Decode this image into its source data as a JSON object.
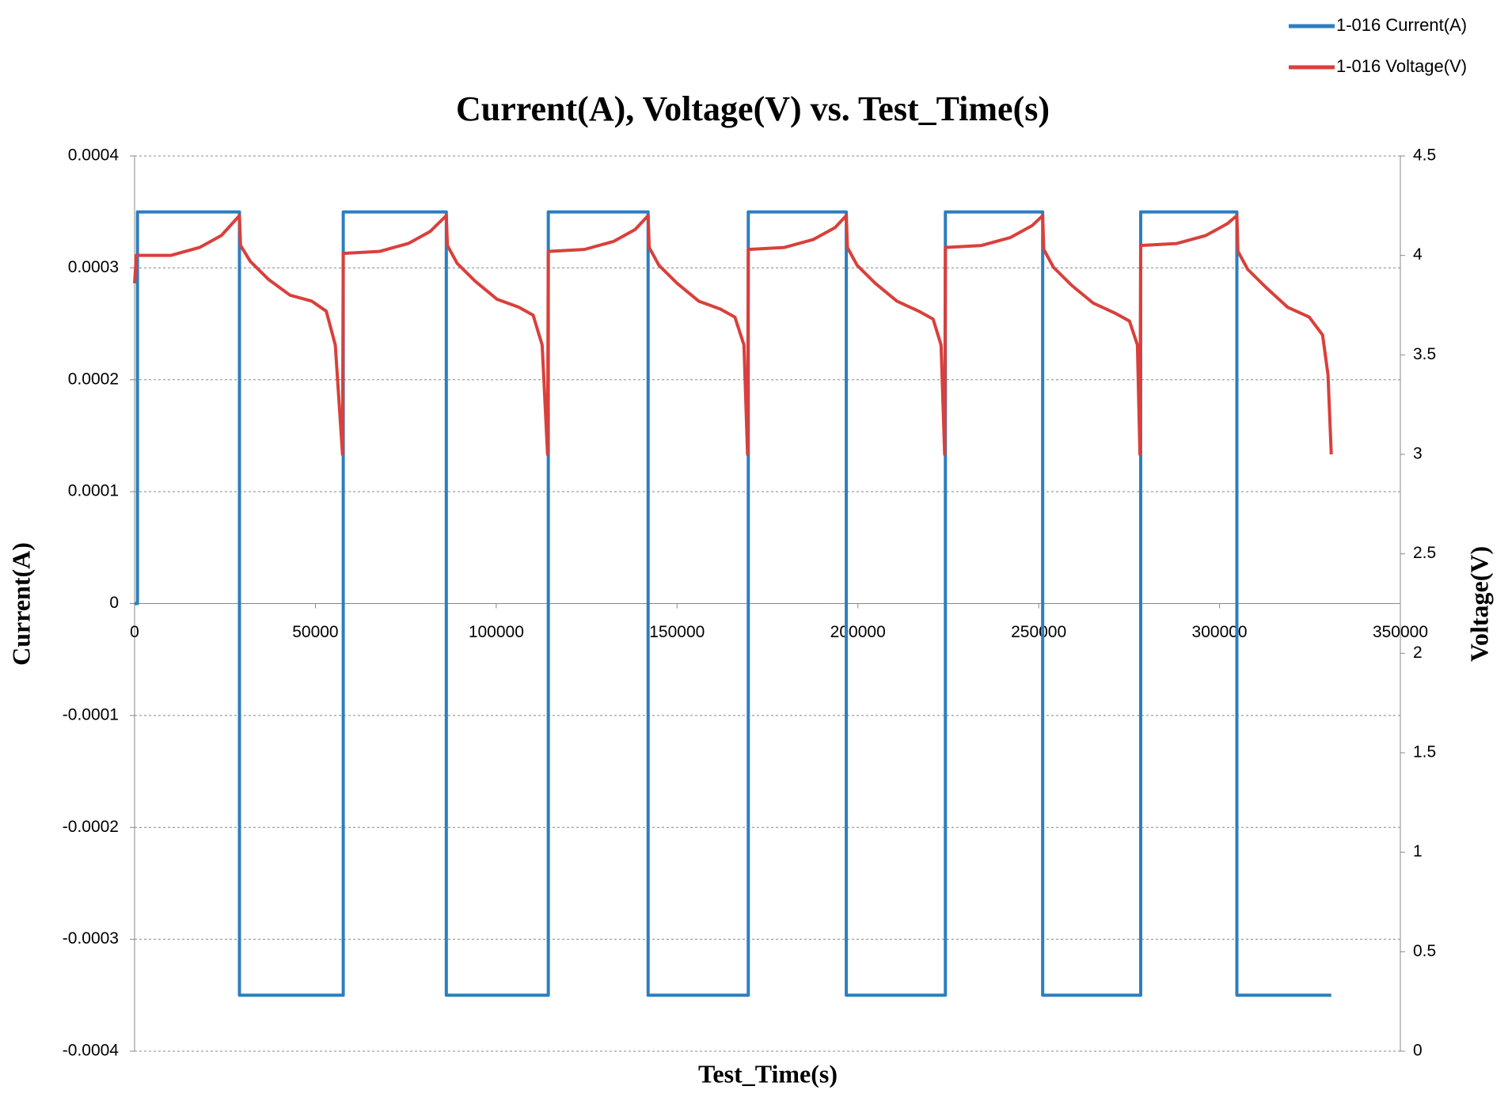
{
  "chart_data": {
    "type": "line",
    "title": "Current(A), Voltage(V) vs. Test_Time(s)",
    "x_label": "Test_Time(s)",
    "y_label": "Current(A)",
    "y2_label": "Voltage(V)",
    "xlim": [
      0,
      350000
    ],
    "xticks": [
      0,
      50000,
      100000,
      150000,
      200000,
      250000,
      300000,
      350000
    ],
    "ylim": [
      -0.0004,
      0.0004
    ],
    "yticks": [
      -0.0004,
      -0.0003,
      -0.0002,
      -0.0001,
      0,
      0.0001,
      0.0002,
      0.0003,
      0.0004
    ],
    "y2lim": [
      0,
      4.5
    ],
    "y2ticks": [
      0,
      0.5,
      1,
      1.5,
      2,
      2.5,
      3,
      3.5,
      4,
      4.5
    ],
    "grid": true,
    "legend": "top-right",
    "series": [
      {
        "name": "1-016 Current(A)",
        "color": "#2e7ebf",
        "axis": "y",
        "x": [
          0,
          800,
          800,
          29000,
          29000,
          57700,
          57700,
          86200,
          86200,
          114400,
          114400,
          142000,
          142000,
          169700,
          169700,
          196800,
          196800,
          224200,
          224200,
          251100,
          251100,
          278200,
          278200,
          304800,
          304800,
          330900
        ],
        "values": [
          0,
          0,
          0.00035,
          0.00035,
          -0.00035,
          -0.00035,
          0.00035,
          0.00035,
          -0.00035,
          -0.00035,
          0.00035,
          0.00035,
          -0.00035,
          -0.00035,
          0.00035,
          0.00035,
          -0.00035,
          -0.00035,
          0.00035,
          0.00035,
          -0.00035,
          -0.00035,
          0.00035,
          0.00035,
          -0.00035,
          -0.00035
        ]
      },
      {
        "name": "1-016 Voltage(V)",
        "color": "#d9403b",
        "axis": "y2",
        "x": [
          0,
          500,
          10000,
          18000,
          24000,
          29000,
          29300,
          32000,
          37000,
          43000,
          49000,
          53000,
          55500,
          57500,
          57700,
          67700,
          75700,
          81700,
          86200,
          86500,
          89200,
          94200,
          100200,
          106200,
          110200,
          112700,
          114200,
          114400,
          124400,
          132400,
          138400,
          142000,
          142300,
          145000,
          150000,
          156000,
          162000,
          166000,
          168500,
          169500,
          169700,
          179700,
          187700,
          193700,
          196800,
          197100,
          199800,
          204800,
          210800,
          216800,
          220800,
          223000,
          224000,
          224200,
          234200,
          242200,
          248200,
          251100,
          251400,
          254100,
          259100,
          265100,
          271100,
          275100,
          277300,
          278000,
          278200,
          288200,
          296200,
          302200,
          304800,
          305100,
          307800,
          312800,
          318800,
          324800,
          328500,
          330000,
          330900
        ],
        "values": [
          3.86,
          4.0,
          4.0,
          4.04,
          4.1,
          4.2,
          4.05,
          3.97,
          3.88,
          3.8,
          3.77,
          3.72,
          3.55,
          3.0,
          4.01,
          4.02,
          4.06,
          4.12,
          4.2,
          4.05,
          3.96,
          3.87,
          3.78,
          3.74,
          3.7,
          3.55,
          3.0,
          4.02,
          4.03,
          4.07,
          4.13,
          4.2,
          4.04,
          3.95,
          3.86,
          3.77,
          3.73,
          3.69,
          3.55,
          3.0,
          4.03,
          4.04,
          4.08,
          4.14,
          4.2,
          4.04,
          3.95,
          3.86,
          3.77,
          3.72,
          3.68,
          3.55,
          3.0,
          4.04,
          4.05,
          4.09,
          4.15,
          4.2,
          4.03,
          3.94,
          3.85,
          3.76,
          3.71,
          3.67,
          3.55,
          3.0,
          4.05,
          4.06,
          4.1,
          4.16,
          4.2,
          4.02,
          3.93,
          3.84,
          3.74,
          3.69,
          3.6,
          3.4,
          3.0
        ]
      }
    ]
  }
}
